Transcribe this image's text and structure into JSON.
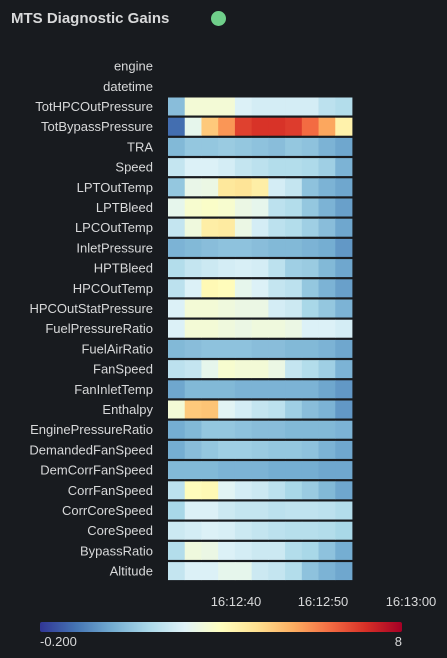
{
  "panel": {
    "title": "MTS Diagnostic Gains",
    "status_color": "#6fcf8a"
  },
  "chart_data": {
    "type": "heatmap",
    "title": "MTS Diagnostic Gains",
    "xlabel": "",
    "ylabel": "",
    "x_ticks": [
      "16:12:40",
      "16:12:50",
      "16:13:00"
    ],
    "y_categories": [
      "engine",
      "datetime",
      "TotHPCOutPressure",
      "TotBypassPressure",
      "TRA",
      "Speed",
      "LPTOutTemp",
      "LPTBleed",
      "LPCOutTemp",
      "InletPressure",
      "HPTBleed",
      "HPCOutTemp",
      "HPCOutStatPressure",
      "FuelPressureRatio",
      "FuelAirRatio",
      "FanSpeed",
      "FanInletTemp",
      "Enthalpy",
      "EnginePressureRatio",
      "DemandedFanSpeed",
      "DemCorrFanSpeed",
      "CorrFanSpeed",
      "CorrCoreSpeed",
      "CoreSpeed",
      "BypassRatio",
      "Altitude"
    ],
    "color_scale": {
      "min": -0.2,
      "max": 8,
      "min_label": "-0.200",
      "max_label": "8",
      "stops": [
        "#313695",
        "#4575b4",
        "#74add1",
        "#abd9e9",
        "#e0f3f8",
        "#ffffbf",
        "#fee090",
        "#fdae61",
        "#f46d43",
        "#d73027",
        "#a50026"
      ]
    },
    "x_time_segments": 11,
    "rows": [
      {
        "name": "engine",
        "values": []
      },
      {
        "name": "datetime",
        "values": []
      },
      {
        "name": "TotHPCOutPressure",
        "values": [
          0.4,
          1.8,
          1.8,
          1.8,
          1.3,
          1.2,
          1.2,
          1.2,
          1.2,
          0.9,
          0.8
        ]
      },
      {
        "name": "TotBypassPressure",
        "values": [
          -0.1,
          1.5,
          3.5,
          4.5,
          6.2,
          6.5,
          6.5,
          6.3,
          5.3,
          4.2,
          2.5
        ]
      },
      {
        "name": "TRA",
        "values": [
          0.35,
          0.5,
          0.5,
          0.55,
          0.5,
          0.45,
          0.4,
          0.5,
          0.45,
          0.3,
          0.2
        ]
      },
      {
        "name": "Speed",
        "values": [
          1.0,
          1.3,
          1.3,
          1.2,
          1.0,
          0.9,
          0.8,
          0.8,
          0.75,
          0.6,
          0.3
        ]
      },
      {
        "name": "LPTOutTemp",
        "values": [
          0.5,
          1.55,
          1.6,
          2.8,
          2.9,
          2.6,
          1.2,
          1.0,
          0.45,
          0.3,
          0.2
        ]
      },
      {
        "name": "LPTBleed",
        "values": [
          1.5,
          1.9,
          2.0,
          1.9,
          1.6,
          1.5,
          0.9,
          0.8,
          0.5,
          0.3,
          0.15
        ]
      },
      {
        "name": "LPCOutTemp",
        "values": [
          1.0,
          1.7,
          2.6,
          2.7,
          1.6,
          1.2,
          0.9,
          0.8,
          0.6,
          0.4,
          0.2
        ]
      },
      {
        "name": "InletPressure",
        "values": [
          0.3,
          0.35,
          0.4,
          0.45,
          0.45,
          0.4,
          0.35,
          0.35,
          0.3,
          0.25,
          0.1
        ]
      },
      {
        "name": "HPTBleed",
        "values": [
          0.8,
          1.0,
          1.1,
          1.2,
          1.25,
          1.2,
          0.9,
          0.6,
          0.55,
          0.35,
          0.2
        ]
      },
      {
        "name": "HPCOutTemp",
        "values": [
          0.9,
          1.3,
          2.3,
          2.2,
          1.5,
          1.3,
          1.0,
          0.9,
          0.5,
          0.3,
          0.15
        ]
      },
      {
        "name": "HPCOutStatPressure",
        "values": [
          1.3,
          1.8,
          1.8,
          1.7,
          1.6,
          1.6,
          1.2,
          1.1,
          0.7,
          0.5,
          0.3
        ]
      },
      {
        "name": "FuelPressureRatio",
        "values": [
          1.3,
          1.8,
          1.8,
          1.7,
          1.6,
          1.7,
          1.7,
          1.6,
          1.3,
          1.3,
          1.2
        ]
      },
      {
        "name": "FuelAirRatio",
        "values": [
          0.35,
          0.4,
          0.45,
          0.45,
          0.45,
          0.4,
          0.4,
          0.35,
          0.35,
          0.3,
          0.2
        ]
      },
      {
        "name": "FanSpeed",
        "values": [
          0.9,
          1.0,
          1.5,
          1.9,
          1.8,
          1.8,
          1.6,
          1.0,
          0.8,
          0.6,
          0.3
        ]
      },
      {
        "name": "FanInletTemp",
        "values": [
          0.2,
          0.35,
          0.35,
          0.35,
          0.3,
          0.3,
          0.3,
          0.3,
          0.3,
          0.2,
          0.1
        ]
      },
      {
        "name": "Enthalpy",
        "values": [
          1.8,
          3.5,
          3.6,
          1.4,
          1.2,
          1.0,
          0.9,
          0.6,
          0.4,
          0.3,
          0.1
        ]
      },
      {
        "name": "EnginePressureRatio",
        "values": [
          0.25,
          0.35,
          0.5,
          0.5,
          0.45,
          0.4,
          0.4,
          0.35,
          0.35,
          0.35,
          0.3
        ]
      },
      {
        "name": "DemandedFanSpeed",
        "values": [
          0.25,
          0.4,
          0.5,
          0.6,
          0.6,
          0.55,
          0.5,
          0.5,
          0.45,
          0.3,
          0.2
        ]
      },
      {
        "name": "DemCorrFanSpeed",
        "values": [
          0.35,
          0.35,
          0.35,
          0.3,
          0.3,
          0.3,
          0.25,
          0.25,
          0.25,
          0.2,
          0.2
        ]
      },
      {
        "name": "CorrFanSpeed",
        "values": [
          0.9,
          2.2,
          2.3,
          1.4,
          1.2,
          1.1,
          0.9,
          0.7,
          0.55,
          0.35,
          0.2
        ]
      },
      {
        "name": "CorrCoreSpeed",
        "values": [
          0.7,
          1.3,
          1.3,
          1.1,
          1.0,
          1.0,
          0.9,
          0.95,
          0.95,
          0.9,
          0.8
        ]
      },
      {
        "name": "CoreSpeed",
        "values": [
          1.1,
          1.2,
          1.3,
          1.25,
          1.1,
          1.0,
          0.9,
          0.85,
          0.85,
          0.8,
          0.7
        ]
      },
      {
        "name": "BypassRatio",
        "values": [
          0.8,
          1.7,
          1.6,
          1.3,
          1.2,
          1.1,
          1.1,
          0.8,
          0.7,
          0.45,
          0.25
        ]
      },
      {
        "name": "Altitude",
        "values": [
          1.0,
          1.3,
          1.3,
          1.5,
          1.5,
          1.1,
          1.0,
          0.8,
          0.45,
          0.3,
          0.2
        ]
      }
    ]
  }
}
